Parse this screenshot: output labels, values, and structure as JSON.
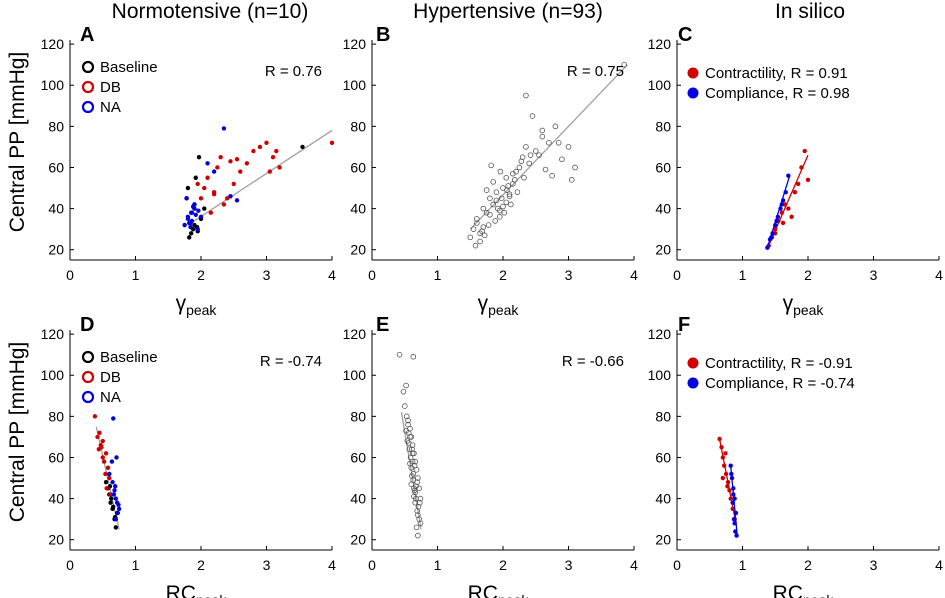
{
  "figure": {
    "column_titles": [
      "Normotensive (n=10)",
      "Hypertensive (n=93)",
      "In silico"
    ],
    "row_ylabel": "Central PP [mmHg]",
    "panel_letters": [
      "A",
      "B",
      "C",
      "D",
      "E",
      "F"
    ],
    "colors": {
      "baseline": "#000000",
      "db": "#d00000",
      "na": "#0000e0",
      "fit": "#a0a0a0",
      "open": "#555555"
    }
  },
  "chart_data": [
    {
      "id": "A",
      "type": "scatter",
      "title": "Normotensive (n=10)",
      "xlabel_main": "γ",
      "xlabel_sub": "peak",
      "ylabel": "Central PP [mmHg]",
      "xlim": [
        0,
        4
      ],
      "ylim": [
        15,
        122
      ],
      "xticks": [
        0,
        1,
        2,
        3,
        4
      ],
      "yticks": [
        20,
        40,
        60,
        80,
        100,
        120
      ],
      "r_label": "R = 0.76",
      "legend_style": "open",
      "fit": [
        [
          1.8,
          32
        ],
        [
          4.0,
          78
        ]
      ],
      "fit_color": "#a0a0a0",
      "series": [
        {
          "name": "Baseline",
          "color": "#000000",
          "x": [
            1.82,
            1.85,
            1.88,
            1.9,
            1.95,
            1.78,
            1.8,
            1.92,
            1.86,
            2.0,
            1.9,
            1.84,
            3.55,
            1.97,
            2.05,
            1.94
          ],
          "y": [
            26,
            28,
            30,
            32,
            29,
            45,
            50,
            55,
            38,
            35,
            42,
            33,
            70,
            65,
            40,
            31
          ]
        },
        {
          "name": "DB",
          "color": "#d00000",
          "x": [
            1.75,
            1.9,
            2.0,
            2.05,
            2.1,
            2.2,
            2.25,
            2.3,
            2.4,
            2.5,
            2.6,
            2.7,
            2.8,
            2.9,
            3.0,
            3.1,
            3.2,
            2.15,
            2.35,
            3.15,
            4.0,
            2.45,
            2.55,
            1.95,
            2.2,
            3.05
          ],
          "y": [
            32,
            40,
            45,
            50,
            55,
            48,
            60,
            65,
            45,
            52,
            58,
            62,
            68,
            70,
            72,
            65,
            60,
            38,
            42,
            68,
            72,
            63,
            64,
            52,
            47,
            58
          ]
        },
        {
          "name": "NA",
          "color": "#0000e0",
          "x": [
            1.75,
            1.8,
            1.85,
            1.9,
            1.95,
            2.0,
            1.78,
            1.82,
            1.88,
            1.92,
            2.1,
            2.2,
            2.35,
            2.55,
            2.45,
            1.86,
            1.96,
            1.84,
            1.9,
            1.8
          ],
          "y": [
            32,
            35,
            38,
            40,
            30,
            36,
            45,
            33,
            41,
            37,
            62,
            58,
            79,
            44,
            46,
            34,
            39,
            31,
            42,
            36
          ]
        }
      ]
    },
    {
      "id": "B",
      "type": "scatter",
      "title": "Hypertensive (n=93)",
      "xlabel_main": "γ",
      "xlabel_sub": "peak",
      "ylabel": "",
      "xlim": [
        0,
        4
      ],
      "ylim": [
        15,
        122
      ],
      "xticks": [
        0,
        1,
        2,
        3,
        4
      ],
      "yticks": [
        20,
        40,
        60,
        80,
        100,
        120
      ],
      "r_label": "R = 0.75",
      "legend_style": "none",
      "fit": [
        [
          1.5,
          30
        ],
        [
          3.9,
          110
        ]
      ],
      "fit_color": "#a0a0a0",
      "series": [
        {
          "name": "Hypertensive",
          "color": "#555555",
          "open": true,
          "x": [
            1.5,
            1.55,
            1.6,
            1.65,
            1.7,
            1.75,
            1.8,
            1.85,
            1.9,
            1.95,
            2.0,
            2.05,
            2.1,
            2.15,
            2.2,
            2.25,
            2.3,
            2.35,
            2.4,
            2.5,
            2.6,
            2.7,
            2.8,
            3.0,
            3.1,
            3.85,
            2.35,
            2.45,
            1.6,
            1.7,
            1.8,
            1.9,
            2.0,
            2.1,
            1.75,
            1.85,
            1.95,
            2.05,
            2.15,
            1.65,
            1.72,
            1.88,
            1.98,
            2.08,
            2.18,
            2.28,
            2.55,
            2.65,
            2.75,
            2.9,
            3.05,
            1.58,
            1.68,
            1.78,
            1.92,
            2.02,
            2.12,
            2.22,
            2.32,
            2.42,
            2.6,
            2.85,
            1.82,
            1.96,
            2.06
          ],
          "y": [
            26,
            30,
            35,
            28,
            40,
            38,
            45,
            42,
            48,
            36,
            50,
            55,
            47,
            52,
            58,
            60,
            65,
            70,
            62,
            68,
            75,
            72,
            80,
            70,
            60,
            110,
            95,
            85,
            33,
            31,
            37,
            44,
            41,
            46,
            49,
            53,
            39,
            43,
            57,
            24,
            27,
            34,
            45,
            51,
            54,
            63,
            66,
            59,
            56,
            64,
            54,
            22,
            29,
            32,
            40,
            38,
            42,
            48,
            55,
            66,
            78,
            72,
            61,
            58,
            49
          ]
        }
      ]
    },
    {
      "id": "C",
      "type": "scatter",
      "title": "In silico",
      "xlabel_main": "γ",
      "xlabel_sub": "peak",
      "ylabel": "",
      "xlim": [
        0,
        4
      ],
      "ylim": [
        15,
        122
      ],
      "xticks": [
        0,
        1,
        2,
        3,
        4
      ],
      "yticks": [
        20,
        40,
        60,
        80,
        100,
        120
      ],
      "r_label": "",
      "legend_style": "filled",
      "series": [
        {
          "name": "Contractility, R = 0.91",
          "color": "#d00000",
          "x": [
            1.4,
            1.45,
            1.5,
            1.55,
            1.6,
            1.65,
            1.7,
            1.75,
            1.8,
            1.85,
            1.9,
            1.95,
            2.0,
            1.5,
            1.62
          ],
          "y": [
            22,
            26,
            30,
            34,
            38,
            42,
            40,
            36,
            48,
            52,
            60,
            68,
            54,
            28,
            33
          ],
          "fit": [
            [
              1.4,
              22
            ],
            [
              2.0,
              66
            ]
          ]
        },
        {
          "name": "Compliance, R = 0.98",
          "color": "#0000e0",
          "x": [
            1.38,
            1.42,
            1.46,
            1.5,
            1.54,
            1.58,
            1.62,
            1.66,
            1.7,
            1.44,
            1.52,
            1.6
          ],
          "y": [
            21,
            25,
            28,
            32,
            36,
            40,
            44,
            48,
            56,
            26,
            34,
            42
          ],
          "fit": [
            [
              1.38,
              21
            ],
            [
              1.72,
              56
            ]
          ]
        }
      ]
    },
    {
      "id": "D",
      "type": "scatter",
      "title": "",
      "xlabel_main": "RC",
      "xlabel_sub": "peak",
      "ylabel": "Central PP [mmHg]",
      "xlim": [
        0,
        4
      ],
      "ylim": [
        15,
        122
      ],
      "xticks": [
        0,
        1,
        2,
        3,
        4
      ],
      "yticks": [
        20,
        40,
        60,
        80,
        100,
        120
      ],
      "r_label": "R = -0.74",
      "legend_style": "open",
      "fit": [
        [
          0.4,
          75
        ],
        [
          0.75,
          25
        ]
      ],
      "fit_color": "#a0a0a0",
      "series": [
        {
          "name": "Baseline",
          "color": "#000000",
          "x": [
            0.55,
            0.6,
            0.62,
            0.65,
            0.68,
            0.7,
            0.58,
            0.63,
            0.66,
            0.72,
            0.69,
            0.61
          ],
          "y": [
            48,
            42,
            38,
            35,
            30,
            26,
            45,
            40,
            36,
            33,
            31,
            46
          ]
        },
        {
          "name": "DB",
          "color": "#d00000",
          "x": [
            0.38,
            0.45,
            0.5,
            0.55,
            0.48,
            0.52,
            0.58,
            0.6,
            0.44,
            0.56,
            0.5,
            0.62,
            0.42,
            0.54,
            0.47
          ],
          "y": [
            80,
            72,
            68,
            62,
            65,
            58,
            55,
            50,
            64,
            45,
            60,
            42,
            70,
            52,
            66
          ]
        },
        {
          "name": "NA",
          "color": "#0000e0",
          "x": [
            0.6,
            0.65,
            0.68,
            0.7,
            0.72,
            0.75,
            0.66,
            0.71,
            0.73,
            0.69,
            0.74,
            0.64,
            0.67,
            0.7
          ],
          "y": [
            52,
            48,
            44,
            40,
            38,
            35,
            79,
            60,
            33,
            46,
            37,
            58,
            42,
            30
          ]
        }
      ]
    },
    {
      "id": "E",
      "type": "scatter",
      "title": "",
      "xlabel_main": "RC",
      "xlabel_sub": "peak",
      "ylabel": "",
      "xlim": [
        0,
        4
      ],
      "ylim": [
        15,
        122
      ],
      "xticks": [
        0,
        1,
        2,
        3,
        4
      ],
      "yticks": [
        20,
        40,
        60,
        80,
        100,
        120
      ],
      "r_label": "R = -0.66",
      "legend_style": "none",
      "fit": [
        [
          0.45,
          82
        ],
        [
          0.75,
          25
        ]
      ],
      "fit_color": "#a0a0a0",
      "series": [
        {
          "name": "Hypertensive",
          "color": "#555555",
          "open": true,
          "x": [
            0.42,
            0.48,
            0.52,
            0.55,
            0.58,
            0.6,
            0.62,
            0.64,
            0.66,
            0.68,
            0.7,
            0.72,
            0.74,
            0.5,
            0.56,
            0.61,
            0.65,
            0.69,
            0.73,
            0.54,
            0.59,
            0.63,
            0.67,
            0.71,
            0.57,
            0.6,
            0.63,
            0.66,
            0.69,
            0.72,
            0.55,
            0.58,
            0.62,
            0.65,
            0.68,
            0.53,
            0.6,
            0.64,
            0.7,
            0.74,
            0.62,
            0.66,
            0.58,
            0.61,
            0.64,
            0.67,
            0.7,
            0.52,
            0.56,
            0.63
          ],
          "y": [
            110,
            92,
            95,
            78,
            74,
            70,
            66,
            62,
            58,
            54,
            50,
            45,
            40,
            85,
            72,
            64,
            56,
            48,
            38,
            68,
            60,
            52,
            46,
            36,
            64,
            55,
            49,
            43,
            34,
            30,
            76,
            70,
            58,
            44,
            26,
            80,
            47,
            41,
            32,
            28,
            62,
            38,
            57,
            51,
            45,
            40,
            22,
            73,
            67,
            109
          ]
        }
      ]
    },
    {
      "id": "F",
      "type": "scatter",
      "title": "",
      "xlabel_main": "RC",
      "xlabel_sub": "peak",
      "ylabel": "",
      "xlim": [
        0,
        4
      ],
      "ylim": [
        15,
        122
      ],
      "xticks": [
        0,
        1,
        2,
        3,
        4
      ],
      "yticks": [
        20,
        40,
        60,
        80,
        100,
        120
      ],
      "r_label": "",
      "legend_style": "filled",
      "series": [
        {
          "name": "Contractility, R = -0.91",
          "color": "#d00000",
          "x": [
            0.65,
            0.68,
            0.7,
            0.72,
            0.75,
            0.78,
            0.8,
            0.82,
            0.85,
            0.88,
            0.7,
            0.74,
            0.77
          ],
          "y": [
            69,
            65,
            60,
            56,
            52,
            48,
            44,
            40,
            35,
            30,
            50,
            62,
            46
          ],
          "fit": [
            [
              0.65,
              69
            ],
            [
              0.9,
              28
            ]
          ]
        },
        {
          "name": "Compliance, R = -0.74",
          "color": "#0000e0",
          "x": [
            0.82,
            0.84,
            0.86,
            0.88,
            0.9,
            0.85,
            0.87,
            0.89,
            0.83,
            0.88,
            0.91,
            0.86
          ],
          "y": [
            56,
            50,
            45,
            40,
            33,
            38,
            30,
            24,
            52,
            28,
            22,
            42
          ],
          "fit": [
            [
              0.82,
              56
            ],
            [
              0.92,
              22
            ]
          ]
        }
      ]
    }
  ]
}
